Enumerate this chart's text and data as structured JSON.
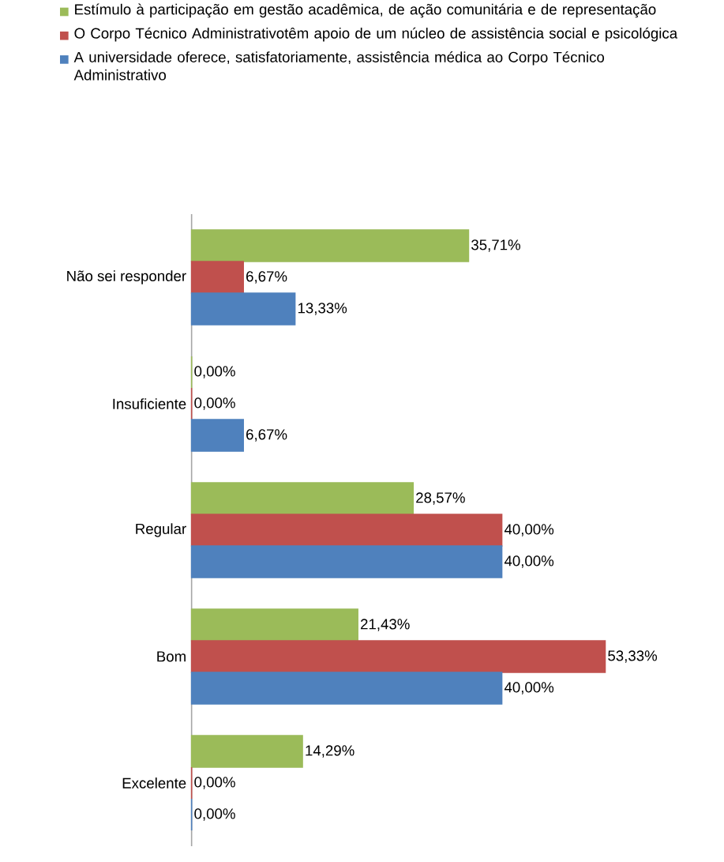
{
  "chart_data": {
    "type": "bar",
    "orientation": "horizontal",
    "legend": "top",
    "categories": [
      "Não sei responder",
      "Insuficiente",
      "Regular",
      "Bom",
      "Excelente"
    ],
    "series": [
      {
        "name": "Estímulo à participação em gestão acadêmica, de ação comunitária e de representação",
        "color": "#9bbb59",
        "values": [
          35.71,
          0,
          28.57,
          21.43,
          14.29
        ],
        "value_labels": [
          "35,71%",
          "0,00%",
          "28,57%",
          "21,43%",
          "14,29%"
        ]
      },
      {
        "name": "O Corpo Técnico Administrativotêm apoio de um núcleo de assistência social e psicológica",
        "color": "#c0504d",
        "values": [
          6.67,
          0,
          40,
          53.33,
          0
        ],
        "value_labels": [
          "6,67%",
          "0,00%",
          "40,00%",
          "53,33%",
          "0,00%"
        ]
      },
      {
        "name": "A universidade oferece, satisfatoriamente, assistência médica ao Corpo Técnico Administrativo",
        "color": "#4f81bd",
        "values": [
          13.33,
          6.67,
          40,
          40,
          0
        ],
        "value_labels": [
          "13,33%",
          "6,67%",
          "40,00%",
          "40,00%",
          "0,00%"
        ]
      }
    ]
  }
}
